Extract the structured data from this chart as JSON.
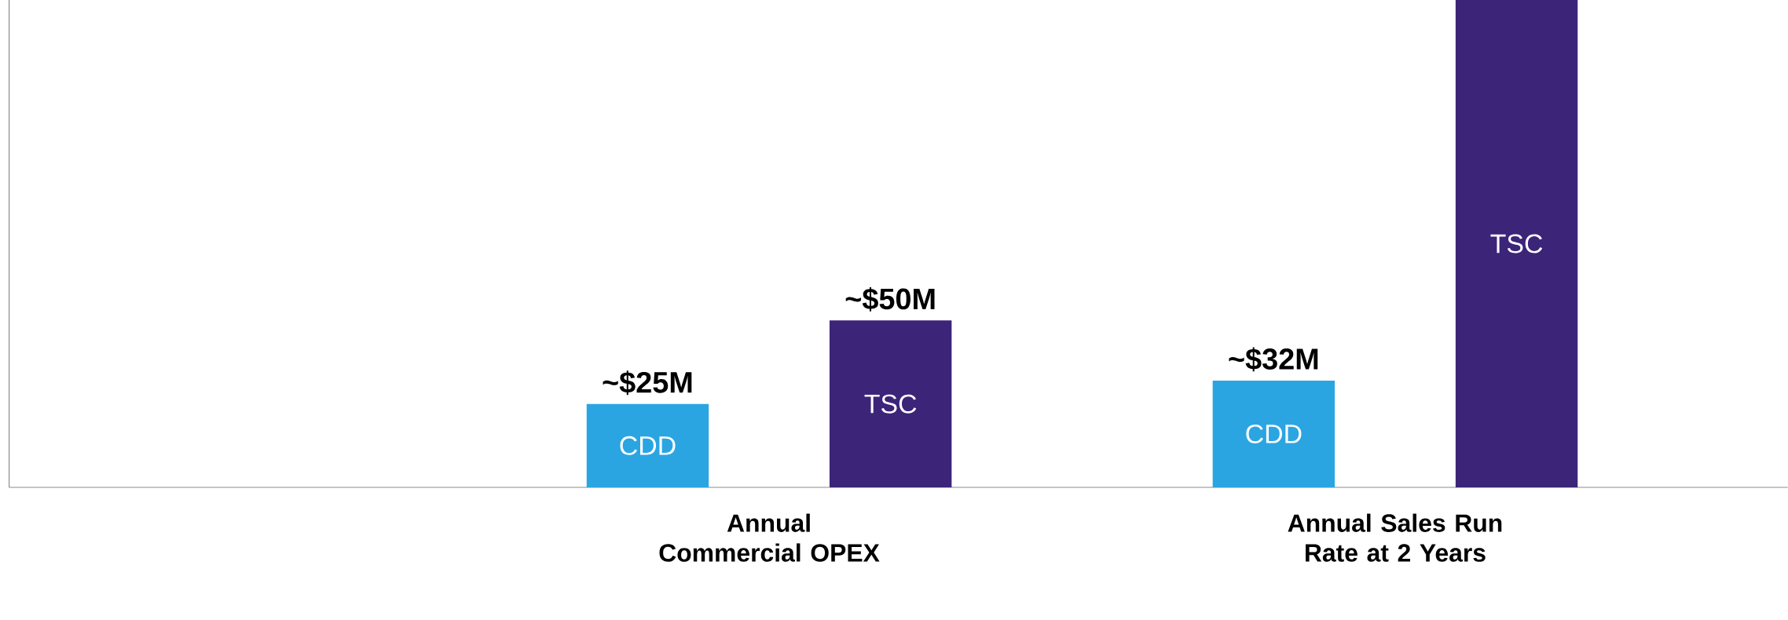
{
  "chart_data": {
    "type": "bar",
    "categories": [
      "Annual Commercial OPEX",
      "Annual Sales Run Rate at 2 Years"
    ],
    "ylim": [
      0,
      146
    ],
    "tick_labels": "x",
    "series": [
      {
        "name": "CDD",
        "color": "#2ba5e2",
        "values": [
          25,
          32
        ],
        "value_labels": [
          "~$25M",
          "~$32M"
        ]
      },
      {
        "name": "TSC",
        "color": "#3c2479",
        "values": [
          50,
          146
        ],
        "value_labels": [
          "~$50M",
          null
        ]
      }
    ]
  }
}
